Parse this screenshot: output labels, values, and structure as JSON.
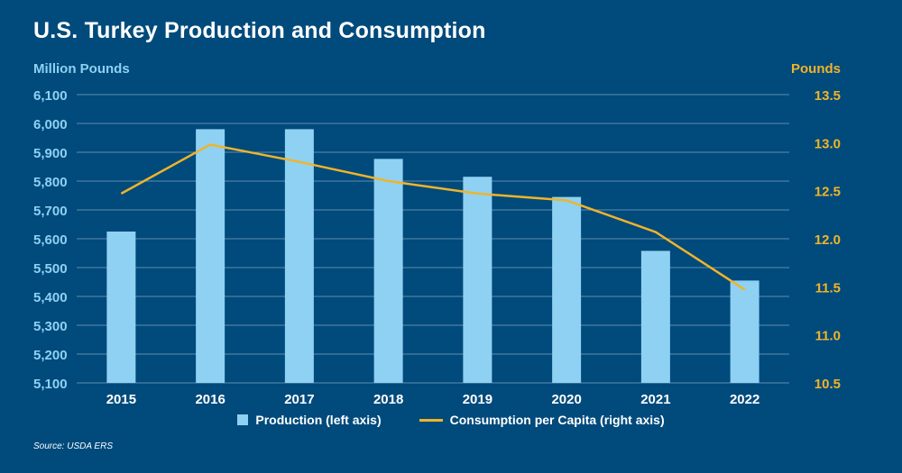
{
  "title": "U.S. Turkey Production and Consumption",
  "source": "Source: USDA ERS",
  "colors": {
    "background": "#004a7c",
    "bar": "#8fd1f3",
    "line": "#f0b429",
    "left_axis_text": "#8fd1f3",
    "right_axis_text": "#f0b429",
    "grid": "#8aa9c4"
  },
  "chart_data": {
    "type": "bar",
    "categories": [
      "2015",
      "2016",
      "2017",
      "2018",
      "2019",
      "2020",
      "2021",
      "2022"
    ],
    "series": [
      {
        "name": "Production (left axis)",
        "type": "bar",
        "axis": "left",
        "values": [
          5625,
          5980,
          5980,
          5877,
          5815,
          5745,
          5558,
          5455
        ]
      },
      {
        "name": "Consumption per Capita  (right axis)",
        "type": "line",
        "axis": "right",
        "values": [
          12.47,
          12.98,
          12.8,
          12.6,
          12.47,
          12.4,
          12.07,
          11.47
        ]
      }
    ],
    "ylabel": "Million Pounds",
    "ylabel_right": "Pounds",
    "ylim": [
      5100,
      6100
    ],
    "ylim_right": [
      10.5,
      13.5
    ],
    "yticks": [
      5100,
      5200,
      5300,
      5400,
      5500,
      5600,
      5700,
      5800,
      5900,
      6000,
      6100
    ],
    "ytick_labels": [
      "5,100",
      "5,200",
      "5,300",
      "5,400",
      "5,500",
      "5,600",
      "5,700",
      "5,800",
      "5,900",
      "6,000",
      "6,100"
    ],
    "yticks_right": [
      10.5,
      11.0,
      11.5,
      12.0,
      12.5,
      13.0,
      13.5
    ],
    "ytick_labels_right": [
      "10.5",
      "11.0",
      "11.5",
      "12.0",
      "12.5",
      "13.0",
      "13.5"
    ],
    "grid": true,
    "legend_position": "bottom"
  }
}
